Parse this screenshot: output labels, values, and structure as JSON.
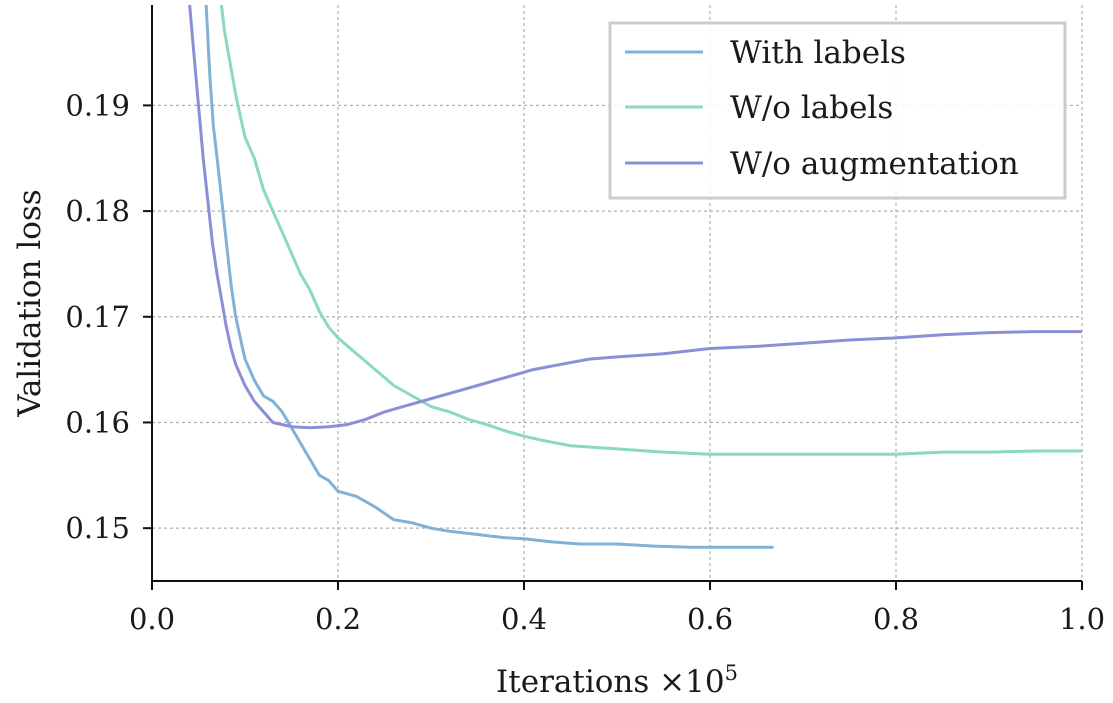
{
  "chart_data": {
    "type": "line",
    "xlabel": "Iterations ×10",
    "xlabel_exponent": "5",
    "ylabel": "Validation loss",
    "xlim": [
      0.0,
      1.0
    ],
    "ylim": [
      0.145,
      0.1995
    ],
    "xticks": [
      0.0,
      0.2,
      0.4,
      0.6,
      0.8,
      1.0
    ],
    "xtick_labels": [
      "0.0",
      "0.2",
      "0.4",
      "0.6",
      "0.8",
      "1.0"
    ],
    "yticks": [
      0.15,
      0.16,
      0.17,
      0.18,
      0.19
    ],
    "ytick_labels": [
      "0.15",
      "0.16",
      "0.17",
      "0.18",
      "0.19"
    ],
    "grid": true,
    "legend_position": "top-right",
    "series": [
      {
        "name": "With labels",
        "color": "#7fb2d6",
        "x": [
          0.058,
          0.062,
          0.066,
          0.07,
          0.075,
          0.08,
          0.085,
          0.09,
          0.095,
          0.1,
          0.11,
          0.12,
          0.13,
          0.14,
          0.15,
          0.16,
          0.17,
          0.18,
          0.19,
          0.2,
          0.22,
          0.24,
          0.26,
          0.28,
          0.3,
          0.32,
          0.34,
          0.36,
          0.38,
          0.4,
          0.43,
          0.46,
          0.5,
          0.54,
          0.58,
          0.62,
          0.667
        ],
        "y": [
          0.2,
          0.193,
          0.188,
          0.185,
          0.181,
          0.177,
          0.173,
          0.17,
          0.168,
          0.166,
          0.164,
          0.1625,
          0.162,
          0.161,
          0.1595,
          0.158,
          0.1565,
          0.155,
          0.1545,
          0.1535,
          0.153,
          0.152,
          0.1508,
          0.1505,
          0.15,
          0.1497,
          0.1495,
          0.1493,
          0.1491,
          0.149,
          0.1487,
          0.1485,
          0.1485,
          0.1483,
          0.1482,
          0.1482,
          0.1482
        ]
      },
      {
        "name": "W/o labels",
        "color": "#8ad9c4",
        "x": [
          0.074,
          0.078,
          0.082,
          0.086,
          0.09,
          0.095,
          0.1,
          0.11,
          0.12,
          0.13,
          0.14,
          0.15,
          0.16,
          0.17,
          0.18,
          0.19,
          0.2,
          0.22,
          0.24,
          0.26,
          0.28,
          0.3,
          0.32,
          0.34,
          0.36,
          0.38,
          0.4,
          0.42,
          0.45,
          0.5,
          0.55,
          0.6,
          0.65,
          0.7,
          0.75,
          0.8,
          0.85,
          0.9,
          0.95,
          1.0
        ],
        "y": [
          0.2,
          0.197,
          0.195,
          0.193,
          0.191,
          0.189,
          0.187,
          0.185,
          0.182,
          0.18,
          0.178,
          0.176,
          0.174,
          0.1725,
          0.1705,
          0.169,
          0.168,
          0.1665,
          0.165,
          0.1635,
          0.1625,
          0.1615,
          0.161,
          0.1603,
          0.1598,
          0.1592,
          0.1587,
          0.1583,
          0.1578,
          0.1575,
          0.1572,
          0.157,
          0.157,
          0.157,
          0.157,
          0.157,
          0.1572,
          0.1572,
          0.1573,
          0.1573
        ]
      },
      {
        "name": "W/o augmentation",
        "color": "#8a8fd6",
        "x": [
          0.04,
          0.045,
          0.05,
          0.055,
          0.06,
          0.065,
          0.07,
          0.075,
          0.08,
          0.085,
          0.09,
          0.095,
          0.1,
          0.11,
          0.12,
          0.13,
          0.14,
          0.15,
          0.17,
          0.19,
          0.21,
          0.23,
          0.25,
          0.27,
          0.29,
          0.31,
          0.33,
          0.35,
          0.37,
          0.39,
          0.41,
          0.44,
          0.47,
          0.5,
          0.55,
          0.6,
          0.65,
          0.7,
          0.75,
          0.8,
          0.85,
          0.9,
          0.95,
          1.0
        ],
        "y": [
          0.2,
          0.195,
          0.19,
          0.185,
          0.181,
          0.177,
          0.174,
          0.1715,
          0.169,
          0.167,
          0.1655,
          0.1645,
          0.1635,
          0.162,
          0.161,
          0.16,
          0.1598,
          0.1596,
          0.1595,
          0.1596,
          0.1598,
          0.1603,
          0.161,
          0.1615,
          0.162,
          0.1625,
          0.163,
          0.1635,
          0.164,
          0.1645,
          0.165,
          0.1655,
          0.166,
          0.1662,
          0.1665,
          0.167,
          0.1672,
          0.1675,
          0.1678,
          0.168,
          0.1683,
          0.1685,
          0.1686,
          0.1686
        ]
      }
    ]
  }
}
